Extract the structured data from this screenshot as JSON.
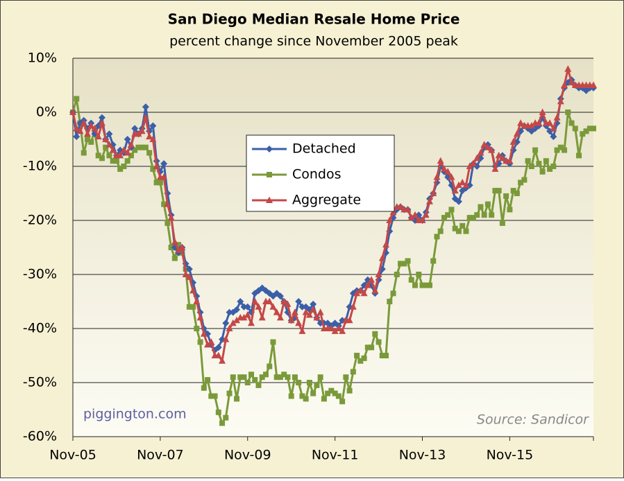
{
  "chart_data": {
    "type": "line",
    "title": "San Diego Median Resale Home Price",
    "subtitle": "percent change since November 2005 peak",
    "annotations": [
      "piggington.com",
      "Source: Sandicor"
    ],
    "categories": [
      "Nov-05",
      null,
      null,
      null,
      null,
      null,
      null,
      null,
      null,
      null,
      null,
      null,
      null,
      null,
      null,
      null,
      null,
      null,
      null,
      null,
      null,
      null,
      null,
      null,
      "Nov-07",
      null,
      null,
      null,
      null,
      null,
      null,
      null,
      null,
      null,
      null,
      null,
      null,
      null,
      null,
      null,
      null,
      null,
      null,
      null,
      null,
      null,
      null,
      null,
      "Nov-09",
      null,
      null,
      null,
      null,
      null,
      null,
      null,
      null,
      null,
      null,
      null,
      null,
      null,
      null,
      null,
      null,
      null,
      null,
      null,
      null,
      null,
      null,
      null,
      "Nov-11",
      null,
      null,
      null,
      null,
      null,
      null,
      null,
      null,
      null,
      null,
      null,
      null,
      null,
      null,
      null,
      null,
      null,
      null,
      null,
      null,
      null,
      null,
      null,
      "Nov-13",
      null,
      null,
      null,
      null,
      null,
      null,
      null,
      null,
      null,
      null,
      null,
      null,
      null,
      null,
      null,
      null,
      null,
      null,
      null,
      null,
      null,
      null,
      null,
      "Nov-15",
      null,
      null,
      null,
      null,
      null,
      null,
      null,
      null,
      null,
      null,
      null,
      null,
      null,
      null,
      null,
      null,
      null,
      null,
      null,
      null,
      null,
      null,
      null
    ],
    "series": [
      {
        "name": "Detached",
        "color": "#3b5fa8",
        "marker": "diamond",
        "values": [
          0,
          -4.5,
          -2,
          -1.5,
          -3,
          -2,
          -4,
          -2.5,
          -1,
          -5,
          -4,
          -6,
          -8,
          -7,
          -7.5,
          -5,
          -6.5,
          -3,
          -4,
          -3,
          1,
          -3.5,
          -2.5,
          -9,
          -11,
          -9.5,
          -15,
          -19,
          -25,
          -26,
          -25,
          -28,
          -29,
          -31.5,
          -34,
          -37,
          -40,
          -41,
          -43,
          -44,
          -43.5,
          -42,
          -39,
          -37,
          -37,
          -36.5,
          -35,
          -36,
          -36,
          -37,
          -33.5,
          -33,
          -32.5,
          -33,
          -33.5,
          -34,
          -33.5,
          -34,
          -35,
          -37,
          -38.5,
          -38,
          -35,
          -36,
          -36,
          -36.5,
          -35.5,
          -38,
          -39,
          -39,
          -39,
          -39.5,
          -39,
          -39.5,
          -38.5,
          -38.5,
          -36,
          -33.5,
          -33,
          -33,
          -32,
          -31,
          -32,
          -33.5,
          -31,
          -29,
          -26,
          -22,
          -19.5,
          -18,
          -17.5,
          -18,
          -18,
          -19.5,
          -20,
          -19,
          -20,
          -18.5,
          -16,
          -15,
          -13,
          -10,
          -11,
          -12,
          -13.5,
          -16,
          -16.5,
          -14.5,
          -14,
          -13.5,
          -9.5,
          -10,
          -8.5,
          -6.5,
          -6,
          -7,
          -10,
          -9.5,
          -8,
          -9,
          -9.5,
          -7,
          -5.5,
          -3.5,
          -2.5,
          -3,
          -3.5,
          -3,
          -2.5,
          -1,
          -2.5,
          -3.5,
          -4.5,
          -2,
          2.5,
          4.5,
          5.5,
          6,
          5,
          4.5,
          4.5,
          4,
          4.5,
          4.5
        ]
      },
      {
        "name": "Condos",
        "color": "#7a9a3a",
        "marker": "square",
        "values": [
          0,
          2.5,
          -2,
          -7.5,
          -5,
          -5.5,
          -3.5,
          -8,
          -8.5,
          -6.5,
          -8,
          -9,
          -9,
          -10.5,
          -10,
          -9,
          -8,
          -7,
          -6.5,
          -6.5,
          -6.5,
          -7.5,
          -10.5,
          -13,
          -13,
          -17,
          -20.5,
          -25,
          -27,
          -24.5,
          -26,
          -29,
          -36,
          -36,
          -40,
          -42.5,
          -51,
          -49.5,
          -52.5,
          -52.5,
          -55.5,
          -57.5,
          -56.5,
          -52,
          -49,
          -53,
          -49,
          -49,
          -50,
          -48.5,
          -49.5,
          -50.5,
          -49,
          -48.5,
          -47,
          -42.5,
          -49,
          -49,
          -48.5,
          -49,
          -52.5,
          -49,
          -50,
          -52.5,
          -53,
          -50,
          -52,
          -50.5,
          -49,
          -53,
          -52,
          -51.5,
          -52,
          -52.5,
          -53.5,
          -49,
          -51.5,
          -48,
          -45,
          -46,
          -45.5,
          -43.5,
          -43.5,
          -41,
          -42.5,
          -45,
          -45,
          -35,
          -33.5,
          -30,
          -28,
          -28,
          -27.5,
          -31,
          -32,
          -30,
          -32,
          -32,
          -32,
          -27.5,
          -23,
          -22,
          -19.5,
          -19,
          -18,
          -21.5,
          -22,
          -21,
          -22,
          -19.5,
          -19.5,
          -19,
          -17.5,
          -19,
          -17,
          -19,
          -14.5,
          -14.5,
          -20.5,
          -15.5,
          -18,
          -14.5,
          -15,
          -13,
          -12.5,
          -9,
          -10,
          -7,
          -9.5,
          -11,
          -9,
          -10.5,
          -10,
          -7,
          -6.5,
          -7,
          0,
          -2,
          -3,
          -8,
          -4,
          -3.5,
          -3,
          -3
        ]
      },
      {
        "name": "Aggregate",
        "color": "#c44848",
        "marker": "triangle",
        "values": [
          0,
          -3,
          -3.5,
          -2,
          -4,
          -2.5,
          -3,
          -4.5,
          -2,
          -5,
          -6,
          -7,
          -8,
          -8,
          -7,
          -7.5,
          -6,
          -4,
          -4,
          -3.5,
          -1,
          -4.5,
          -5,
          -10,
          -12,
          -12,
          -17,
          -19.5,
          -24,
          -25.5,
          -25,
          -30,
          -30.5,
          -33,
          -35,
          -38,
          -41,
          -43,
          -42.5,
          -45,
          -45,
          -46,
          -42,
          -40,
          -39,
          -38.5,
          -38,
          -38,
          -37.5,
          -39,
          -35,
          -36,
          -38,
          -35,
          -35,
          -36,
          -37,
          -38,
          -35,
          -35.5,
          -38.5,
          -37,
          -39,
          -40.5,
          -37,
          -37.5,
          -36.5,
          -38,
          -37,
          -40,
          -40,
          -40,
          -40.5,
          -40,
          -40.5,
          -38.5,
          -38.5,
          -36,
          -33.5,
          -33,
          -33.5,
          -32,
          -31,
          -33,
          -30,
          -27,
          -24.5,
          -20,
          -18.5,
          -17.5,
          -17.5,
          -18,
          -18,
          -19.5,
          -19,
          -20,
          -20,
          -19,
          -16.5,
          -15,
          -12,
          -9,
          -10.5,
          -11,
          -12,
          -14.5,
          -13.5,
          -13,
          -13.5,
          -10,
          -9.5,
          -8.5,
          -7.5,
          -6,
          -6.5,
          -7,
          -10.5,
          -8,
          -8.5,
          -9,
          -9,
          -5.5,
          -4,
          -2,
          -2.5,
          -2.5,
          -2.5,
          -2,
          -2,
          0,
          -2,
          -2,
          -3,
          -1,
          2,
          5,
          8,
          5.5,
          5,
          5,
          5,
          5,
          5,
          5
        ]
      }
    ],
    "ylim": [
      -60,
      10
    ],
    "yticks": [
      {
        "value": -60,
        "label": "-60%"
      },
      {
        "value": -50,
        "label": "-50%"
      },
      {
        "value": -40,
        "label": "-40%"
      },
      {
        "value": -30,
        "label": "-30%"
      },
      {
        "value": -20,
        "label": "-20%"
      },
      {
        "value": -10,
        "label": "-10%"
      },
      {
        "value": 0,
        "label": "0%"
      },
      {
        "value": 10,
        "label": "10%"
      }
    ],
    "grid": true,
    "legend": "center"
  }
}
